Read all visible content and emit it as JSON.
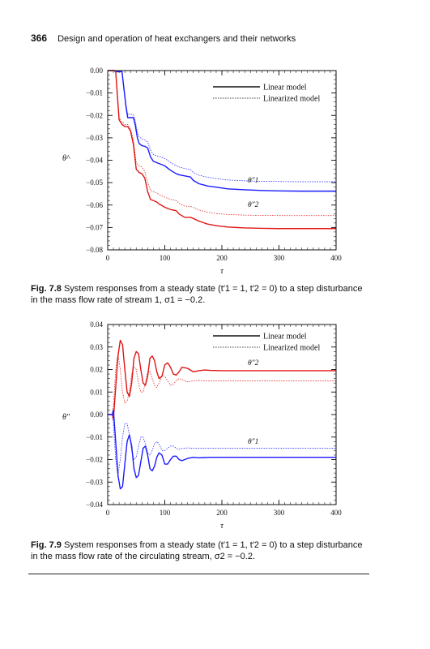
{
  "header": {
    "page_number": "366",
    "running_title": "Design and operation of heat exchangers and their networks"
  },
  "figures": [
    {
      "label": "Fig. 7.8",
      "caption_text": "System responses from a steady state (t′1 = 1, t′2 = 0) to a step disturbance in the mass flow rate of stream 1, σ1 = −0.2."
    },
    {
      "label": "Fig. 7.9",
      "caption_text": "System responses from a steady state (t′1 = 1, t′2 = 0) to a step disturbance in the mass flow rate of the circulating stream, σ2 = −0.2."
    }
  ],
  "chart_data": [
    {
      "type": "line",
      "xlabel": "τ",
      "ylabel": "θ^",
      "xlim": [
        0,
        400
      ],
      "ylim": [
        -0.08,
        0.0
      ],
      "xticks": [
        "0",
        "100",
        "200",
        "300",
        "400"
      ],
      "yticks": [
        "0.00",
        "−0.01",
        "−0.02",
        "−0.03",
        "−0.04",
        "−0.05",
        "−0.06",
        "−0.07",
        "−0.08"
      ],
      "legend": {
        "position": "top-right",
        "entries": [
          "Linear model",
          "Linearized model"
        ]
      },
      "annotations": [
        "θ″1",
        "θ″2"
      ],
      "colors": {
        "theta1": "#1a1aff",
        "theta2": "#e01515"
      },
      "series": [
        {
          "name": "Linear model",
          "label": "θ″1",
          "color": "#1a1aff",
          "dash": false,
          "x": [
            0,
            12,
            14,
            25,
            32,
            35,
            40,
            45,
            48,
            52,
            55,
            60,
            65,
            70,
            75,
            80,
            85,
            90,
            100,
            110,
            120,
            125,
            135,
            145,
            150,
            160,
            175,
            190,
            210,
            240,
            270,
            300,
            340,
            400
          ],
          "y": [
            0,
            0,
            -0.0005,
            -0.0005,
            -0.016,
            -0.021,
            -0.021,
            -0.021,
            -0.024,
            -0.03,
            -0.0325,
            -0.0335,
            -0.0338,
            -0.0345,
            -0.0385,
            -0.0405,
            -0.041,
            -0.0415,
            -0.0425,
            -0.0445,
            -0.046,
            -0.0465,
            -0.047,
            -0.0475,
            -0.049,
            -0.0505,
            -0.0515,
            -0.052,
            -0.0528,
            -0.0532,
            -0.0535,
            -0.0537,
            -0.0538,
            -0.0538
          ]
        },
        {
          "name": "Linearized model",
          "label": "θ″1",
          "color": "#1a1aff",
          "dash": true,
          "x": [
            0,
            12,
            14,
            25,
            32,
            35,
            40,
            45,
            48,
            52,
            55,
            60,
            65,
            70,
            75,
            80,
            85,
            90,
            100,
            110,
            120,
            125,
            135,
            145,
            150,
            160,
            175,
            190,
            210,
            240,
            270,
            300,
            340,
            400
          ],
          "y": [
            0,
            0,
            -0.0005,
            -0.0005,
            -0.015,
            -0.0195,
            -0.0195,
            -0.0197,
            -0.022,
            -0.0275,
            -0.0295,
            -0.0305,
            -0.031,
            -0.0318,
            -0.0355,
            -0.0375,
            -0.038,
            -0.0383,
            -0.0392,
            -0.041,
            -0.0425,
            -0.043,
            -0.0437,
            -0.0442,
            -0.0455,
            -0.0467,
            -0.0476,
            -0.0482,
            -0.0488,
            -0.0492,
            -0.0494,
            -0.0495,
            -0.0496,
            -0.0496
          ]
        },
        {
          "name": "Linear model",
          "label": "θ″2",
          "color": "#e01515",
          "dash": false,
          "x": [
            0,
            12,
            14,
            20,
            25,
            30,
            35,
            40,
            45,
            50,
            55,
            60,
            65,
            70,
            75,
            80,
            85,
            90,
            100,
            110,
            120,
            125,
            135,
            145,
            150,
            160,
            175,
            190,
            210,
            240,
            270,
            300,
            340,
            400
          ],
          "y": [
            0,
            0,
            -0.0005,
            -0.022,
            -0.024,
            -0.025,
            -0.025,
            -0.027,
            -0.033,
            -0.044,
            -0.0455,
            -0.046,
            -0.048,
            -0.054,
            -0.0575,
            -0.058,
            -0.0585,
            -0.0595,
            -0.061,
            -0.062,
            -0.0625,
            -0.064,
            -0.0655,
            -0.0655,
            -0.066,
            -0.0672,
            -0.0685,
            -0.0692,
            -0.0698,
            -0.0702,
            -0.0704,
            -0.0705,
            -0.0705,
            -0.0705
          ]
        },
        {
          "name": "Linearized model",
          "label": "θ″2",
          "color": "#e01515",
          "dash": true,
          "x": [
            0,
            12,
            14,
            20,
            25,
            30,
            35,
            40,
            45,
            50,
            55,
            60,
            65,
            70,
            75,
            80,
            85,
            90,
            100,
            110,
            120,
            125,
            135,
            145,
            150,
            160,
            175,
            190,
            210,
            240,
            270,
            300,
            340,
            400
          ],
          "y": [
            0,
            0,
            -0.0005,
            -0.021,
            -0.023,
            -0.024,
            -0.024,
            -0.026,
            -0.031,
            -0.041,
            -0.0425,
            -0.043,
            -0.045,
            -0.05,
            -0.0535,
            -0.054,
            -0.0545,
            -0.0553,
            -0.0565,
            -0.0575,
            -0.058,
            -0.0592,
            -0.0605,
            -0.0606,
            -0.0611,
            -0.0622,
            -0.0632,
            -0.0638,
            -0.0642,
            -0.0645,
            -0.0646,
            -0.0647,
            -0.0647,
            -0.0647
          ]
        }
      ]
    },
    {
      "type": "line",
      "xlabel": "τ",
      "ylabel": "θ″",
      "xlim": [
        0,
        400
      ],
      "ylim": [
        -0.04,
        0.04
      ],
      "xticks": [
        "0",
        "100",
        "200",
        "300",
        "400"
      ],
      "yticks": [
        "0.04",
        "0.03",
        "0.02",
        "0.01",
        "0.00",
        "−0.01",
        "−0.02",
        "−0.03",
        "−0.04"
      ],
      "legend": {
        "position": "top-right",
        "entries": [
          "Linear model",
          "Linearized model"
        ]
      },
      "annotations": [
        "θ″2",
        "θ″1"
      ],
      "colors": {
        "theta1": "#1a1aff",
        "theta2": "#e01515"
      },
      "series": [
        {
          "name": "Linear model",
          "label": "θ″2",
          "color": "#e01515",
          "dash": false,
          "x": [
            0,
            8,
            10,
            14,
            18,
            22,
            26,
            30,
            34,
            38,
            42,
            46,
            50,
            54,
            58,
            62,
            66,
            70,
            74,
            78,
            82,
            86,
            90,
            95,
            100,
            105,
            110,
            115,
            120,
            125,
            130,
            140,
            150,
            160,
            170,
            180,
            200,
            230,
            260,
            300,
            350,
            400
          ],
          "y": [
            0,
            0,
            -0.002,
            0.012,
            0.026,
            0.033,
            0.031,
            0.02,
            0.01,
            0.008,
            0.014,
            0.025,
            0.028,
            0.027,
            0.02,
            0.014,
            0.013,
            0.017,
            0.025,
            0.026,
            0.024,
            0.019,
            0.016,
            0.017,
            0.022,
            0.023,
            0.021,
            0.018,
            0.0175,
            0.019,
            0.021,
            0.0205,
            0.019,
            0.0195,
            0.0198,
            0.0196,
            0.0195,
            0.0195,
            0.0195,
            0.0195,
            0.0195,
            0.0195
          ]
        },
        {
          "name": "Linearized model",
          "label": "θ″2",
          "color": "#e01515",
          "dash": true,
          "x": [
            0,
            8,
            10,
            14,
            18,
            22,
            26,
            30,
            34,
            38,
            42,
            46,
            50,
            54,
            58,
            62,
            66,
            70,
            74,
            78,
            82,
            86,
            90,
            95,
            100,
            105,
            110,
            115,
            120,
            125,
            130,
            140,
            150,
            160,
            170,
            180,
            200,
            230,
            260,
            300,
            350,
            400
          ],
          "y": [
            0,
            0,
            0.004,
            0.02,
            0.027,
            0.02,
            0.01,
            0.005,
            0.006,
            0.01,
            0.018,
            0.021,
            0.02,
            0.014,
            0.01,
            0.01,
            0.014,
            0.019,
            0.019,
            0.016,
            0.013,
            0.012,
            0.014,
            0.017,
            0.017,
            0.015,
            0.013,
            0.0135,
            0.015,
            0.016,
            0.0155,
            0.0145,
            0.015,
            0.0152,
            0.015,
            0.015,
            0.015,
            0.015,
            0.015,
            0.015,
            0.015,
            0.015
          ]
        },
        {
          "name": "Linear model",
          "label": "θ″1",
          "color": "#1a1aff",
          "dash": false,
          "x": [
            0,
            8,
            10,
            14,
            18,
            22,
            26,
            30,
            34,
            38,
            42,
            46,
            50,
            54,
            58,
            62,
            66,
            70,
            74,
            78,
            82,
            86,
            90,
            95,
            100,
            105,
            110,
            115,
            120,
            125,
            130,
            140,
            150,
            160,
            170,
            180,
            200,
            230,
            260,
            300,
            350,
            400
          ],
          "y": [
            0,
            0,
            0.002,
            -0.012,
            -0.027,
            -0.033,
            -0.032,
            -0.022,
            -0.012,
            -0.009,
            -0.014,
            -0.024,
            -0.028,
            -0.027,
            -0.021,
            -0.015,
            -0.014,
            -0.018,
            -0.024,
            -0.025,
            -0.023,
            -0.019,
            -0.017,
            -0.018,
            -0.022,
            -0.022,
            -0.02,
            -0.0185,
            -0.0185,
            -0.02,
            -0.0205,
            -0.0195,
            -0.019,
            -0.0192,
            -0.0191,
            -0.019,
            -0.019,
            -0.019,
            -0.019,
            -0.019,
            -0.019,
            -0.019
          ]
        },
        {
          "name": "Linearized model",
          "label": "θ″1",
          "color": "#1a1aff",
          "dash": true,
          "x": [
            0,
            8,
            10,
            14,
            18,
            22,
            26,
            30,
            34,
            38,
            42,
            46,
            50,
            54,
            58,
            62,
            66,
            70,
            74,
            78,
            82,
            86,
            90,
            95,
            100,
            105,
            110,
            115,
            120,
            125,
            130,
            140,
            150,
            160,
            170,
            180,
            200,
            230,
            260,
            300,
            350,
            400
          ],
          "y": [
            0,
            0,
            -0.004,
            -0.02,
            -0.027,
            -0.02,
            -0.01,
            -0.004,
            -0.004,
            -0.009,
            -0.016,
            -0.02,
            -0.019,
            -0.014,
            -0.01,
            -0.01,
            -0.013,
            -0.017,
            -0.018,
            -0.016,
            -0.013,
            -0.012,
            -0.013,
            -0.016,
            -0.016,
            -0.015,
            -0.014,
            -0.014,
            -0.015,
            -0.0155,
            -0.015,
            -0.0148,
            -0.015,
            -0.015,
            -0.015,
            -0.015,
            -0.015,
            -0.015,
            -0.015,
            -0.015,
            -0.015,
            -0.015
          ]
        }
      ]
    }
  ]
}
